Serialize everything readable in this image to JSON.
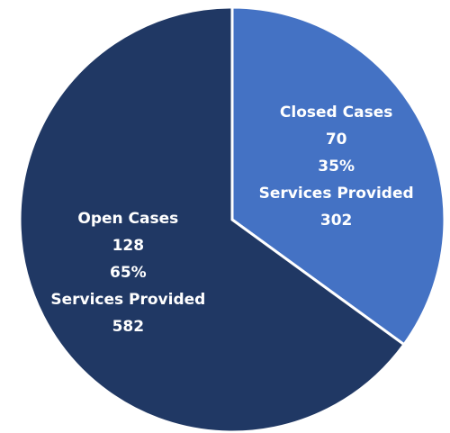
{
  "chart_data": {
    "type": "pie",
    "categories": [
      "Closed Cases",
      "Open Cases"
    ],
    "values": [
      35,
      65
    ],
    "value_labels": [
      "35%",
      "65%"
    ],
    "counts": [
      70,
      128
    ],
    "services_label": "Services Provided",
    "services": [
      302,
      582
    ],
    "colors": [
      "#4472c4",
      "#203864"
    ]
  }
}
